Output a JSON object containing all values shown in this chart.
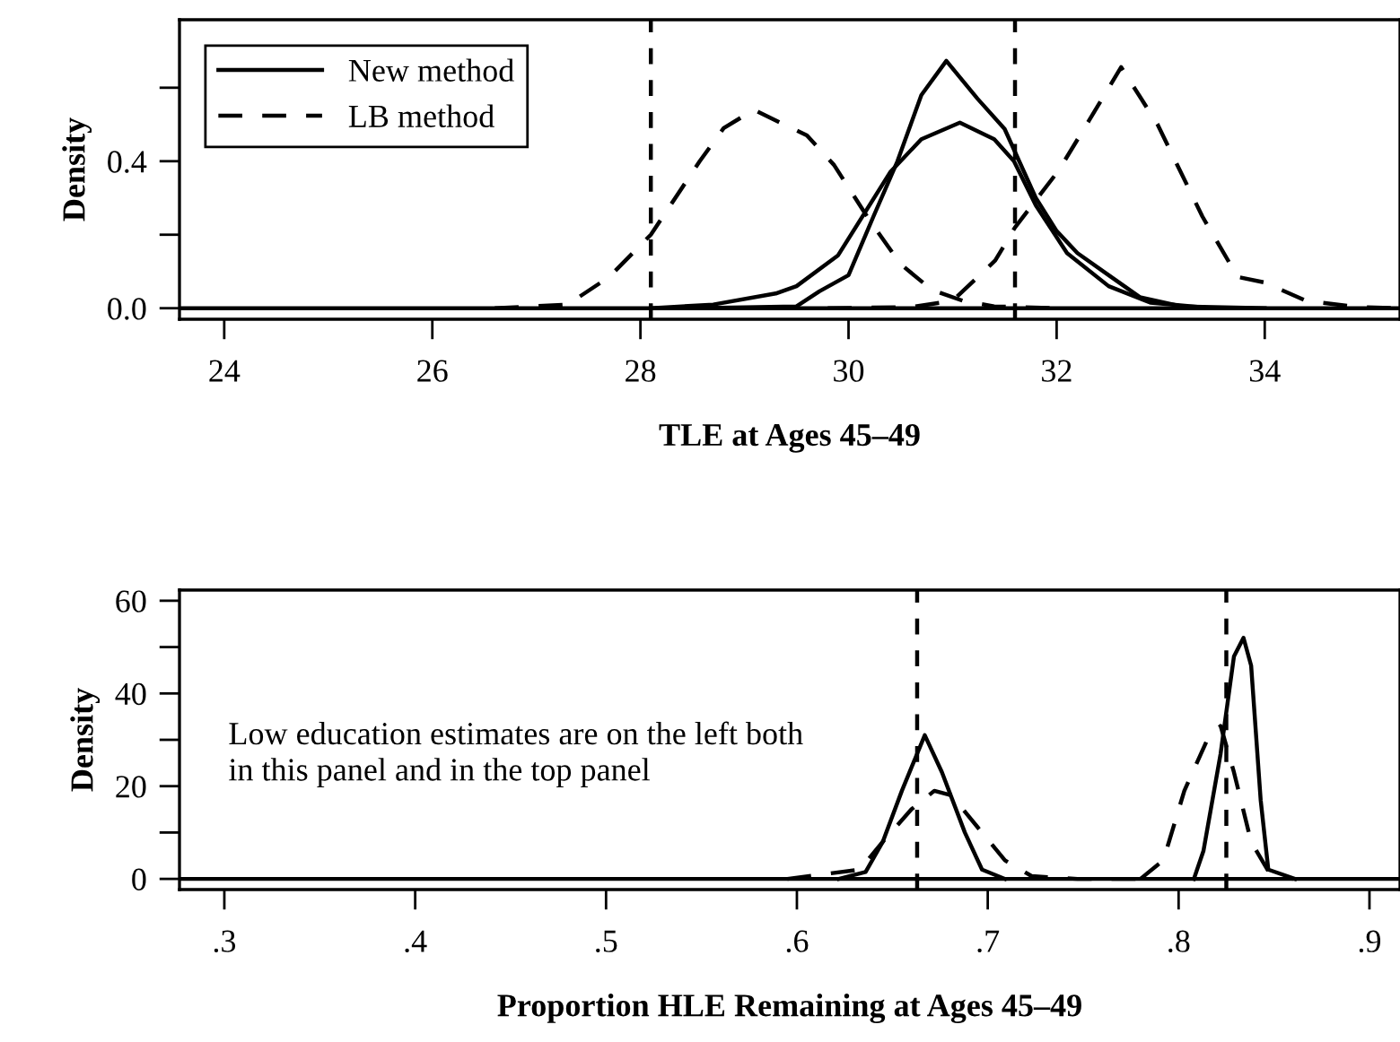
{
  "chart_data": [
    {
      "type": "line",
      "ylabel": "Density",
      "xlabel": "TLE at Ages 45–49",
      "xlim": [
        23.57,
        35.3
      ],
      "ylim": [
        -0.03,
        0.785
      ],
      "xticks": [
        24,
        26,
        28,
        30,
        32,
        34
      ],
      "yticks": [
        {
          "value": 0,
          "label": "0.0"
        },
        {
          "value": 0.2,
          "label": null
        },
        0.4,
        {
          "value": 0.6,
          "label": null
        }
      ],
      "legend": "top left",
      "grid": false,
      "series": [
        {
          "name": "New method",
          "color": "#000000",
          "line_style": "solid",
          "x": [
            28.5,
            29.5,
            29.72,
            30.0,
            30.24,
            30.47,
            30.7,
            30.94,
            31.24,
            31.5,
            31.8,
            32.0,
            32.2,
            32.5,
            32.8,
            33.2,
            34.0
          ],
          "values": [
            0,
            0.005,
            0.046,
            0.09,
            0.25,
            0.4,
            0.58,
            0.673,
            0.57,
            0.488,
            0.3,
            0.21,
            0.15,
            0.09,
            0.03,
            0.005,
            0
          ]
        },
        {
          "color": "#000000",
          "line_style": "solid",
          "x": [
            28.1,
            28.7,
            29.3,
            29.5,
            29.9,
            30.4,
            30.7,
            31.07,
            31.4,
            31.59,
            31.8,
            32.1,
            32.5,
            32.9,
            33.5
          ],
          "values": [
            0,
            0.01,
            0.04,
            0.06,
            0.144,
            0.37,
            0.46,
            0.505,
            0.46,
            0.4,
            0.28,
            0.15,
            0.06,
            0.015,
            0
          ]
        },
        {
          "name": "LB method",
          "color": "#000000",
          "line_style": "dashed",
          "x": [
            26.6,
            27.3,
            27.7,
            28.1,
            28.57,
            28.8,
            29.09,
            29.6,
            29.86,
            30.2,
            30.5,
            30.8,
            31.1,
            31.4,
            32.0
          ],
          "values": [
            0,
            0.01,
            0.085,
            0.2,
            0.4,
            0.49,
            0.54,
            0.47,
            0.39,
            0.24,
            0.12,
            0.05,
            0.02,
            0.005,
            0
          ]
        },
        {
          "color": "#000000",
          "line_style": "dashed",
          "x": [
            29.8,
            30.6,
            31.0,
            31.41,
            31.6,
            32.02,
            32.31,
            32.62,
            32.97,
            33.4,
            33.74,
            34.0,
            34.4,
            34.9,
            35.3
          ],
          "values": [
            0,
            0.003,
            0.02,
            0.13,
            0.22,
            0.375,
            0.51,
            0.656,
            0.5,
            0.25,
            0.085,
            0.07,
            0.02,
            0.003,
            0
          ]
        }
      ],
      "ref_lines": [
        {
          "axis": "x",
          "value": 28.1,
          "line_style": "dashed",
          "color": "#000000"
        },
        {
          "axis": "x",
          "value": 31.6,
          "line_style": "dashed",
          "color": "#000000"
        },
        {
          "axis": "y",
          "value": 0,
          "line_style": "solid",
          "color": "#000000"
        }
      ]
    },
    {
      "type": "line",
      "ylabel": "Density",
      "xlabel": "Proportion HLE Remaining at Ages 45–49",
      "xlim": [
        0.2765,
        0.916
      ],
      "ylim": [
        -2.3,
        62.3
      ],
      "xticks": [
        {
          "value": 0.3,
          "label": ".3"
        },
        {
          "value": 0.4,
          "label": ".4"
        },
        {
          "value": 0.5,
          "label": ".5"
        },
        {
          "value": 0.6,
          "label": ".6"
        },
        {
          "value": 0.7,
          "label": ".7"
        },
        {
          "value": 0.8,
          "label": ".8"
        },
        {
          "value": 0.9,
          "label": ".9"
        }
      ],
      "yticks": [
        0,
        {
          "value": 10,
          "label": null
        },
        20,
        {
          "value": 30,
          "label": null
        },
        40,
        {
          "value": 50,
          "label": null
        },
        60
      ],
      "legend": false,
      "grid": false,
      "annotations": [
        "Low education estimates are on the left both in this panel and in the top panel"
      ],
      "series": [
        {
          "color": "#000000",
          "line_style": "solid",
          "x": [
            0.622,
            0.636,
            0.645,
            0.655,
            0.667,
            0.676,
            0.688,
            0.697,
            0.709
          ],
          "values": [
            0,
            1.5,
            8,
            19,
            31,
            23,
            10,
            2,
            0
          ]
        },
        {
          "color": "#000000",
          "line_style": "solid",
          "x": [
            0.808,
            0.813,
            0.822,
            0.829,
            0.834,
            0.838,
            0.843,
            0.847,
            0.861
          ],
          "values": [
            0,
            6,
            27,
            48,
            52,
            46,
            17,
            2,
            0
          ]
        },
        {
          "color": "#000000",
          "line_style": "dashed",
          "x": [
            0.595,
            0.633,
            0.645,
            0.66,
            0.672,
            0.681,
            0.695,
            0.709,
            0.723,
            0.747,
            0.78
          ],
          "values": [
            0,
            2,
            8,
            15,
            19,
            18,
            11,
            4,
            0.6,
            0,
            0
          ]
        },
        {
          "color": "#000000",
          "line_style": "dashed",
          "x": [
            0.78,
            0.792,
            0.803,
            0.815,
            0.822,
            0.829,
            0.838,
            0.848,
            0.86
          ],
          "values": [
            0,
            4,
            19,
            30,
            33,
            23,
            8,
            1,
            0
          ]
        }
      ],
      "ref_lines": [
        {
          "axis": "x",
          "value": 0.663,
          "line_style": "dashed",
          "color": "#000000"
        },
        {
          "axis": "x",
          "value": 0.825,
          "line_style": "dashed",
          "color": "#000000"
        },
        {
          "axis": "y",
          "value": 0,
          "line_style": "solid",
          "color": "#000000"
        }
      ]
    }
  ]
}
